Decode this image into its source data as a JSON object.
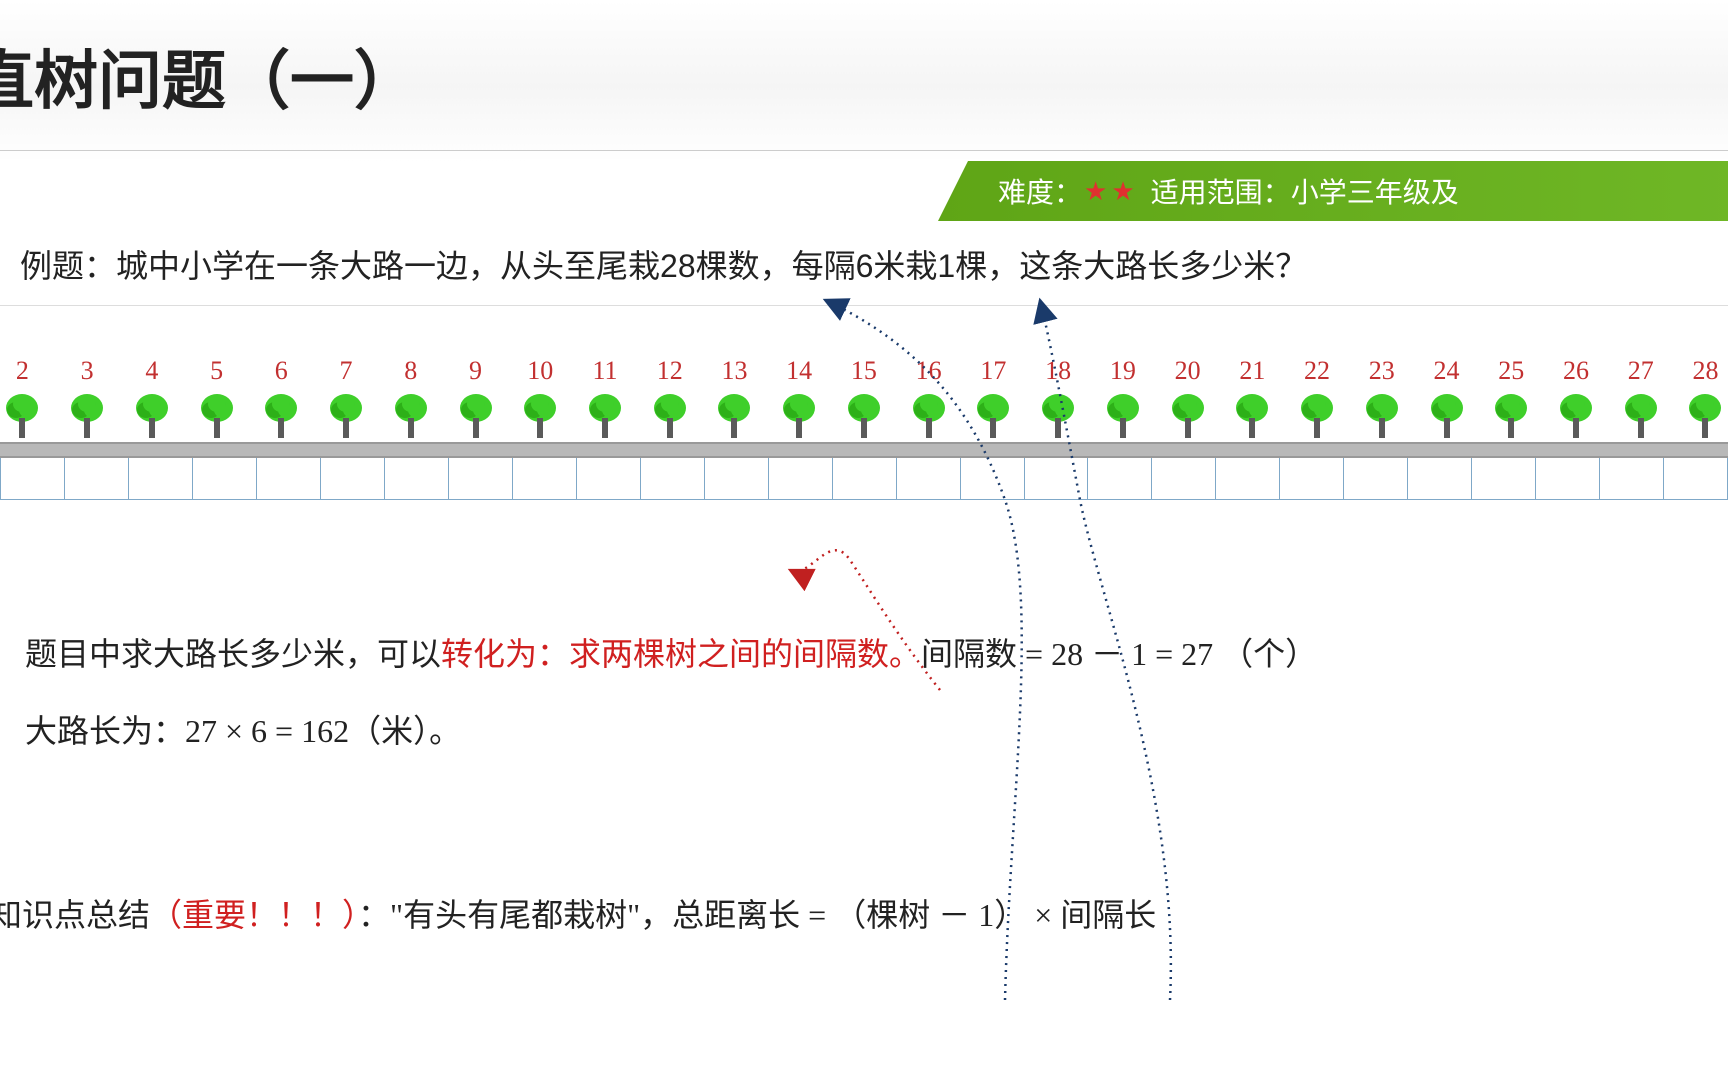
{
  "title": "直树问题（一）",
  "badge": {
    "difficulty_label": "难度",
    "stars": 2,
    "scope_label": "适用范围",
    "scope_value": "小学三年级及",
    "bg_color_left": "#5fa516",
    "bg_color_right": "#6fb726",
    "star_color": "#e03030"
  },
  "problem": {
    "prefix": "例题：",
    "text": "城中小学在一条大路一边，从头至尾栽28棵数，每隔6米栽1棵，这条大路长多少米？"
  },
  "diagram": {
    "tree_count": 27,
    "first_number": 2,
    "last_number": 28,
    "number_color": "#c23030",
    "tree_fill": "#3fcf2a",
    "tree_fill_dark": "#2db018",
    "trunk_color": "#5a5a5a",
    "road_color": "#b8b8b8",
    "interval_border": "#7fa8c8",
    "interval_count": 27
  },
  "solution": {
    "line1_a": "题目中求大路长多少米，可以",
    "line1_red": "转化为：求两棵树之间的间隔数。",
    "line1_b": "间隔数 =  28 － 1 = 27 （个）",
    "line2": "大路长为：27 × 6 = 162（米）。"
  },
  "summary": {
    "prefix": "知识点总结",
    "important": "（重要！！！）",
    "text": "：\"有头有尾都栽树\"，总距离长 = （棵树 － 1） × 间隔长"
  },
  "arrows": {
    "blue_color": "#1a3a6a",
    "red_color": "#c02020"
  }
}
